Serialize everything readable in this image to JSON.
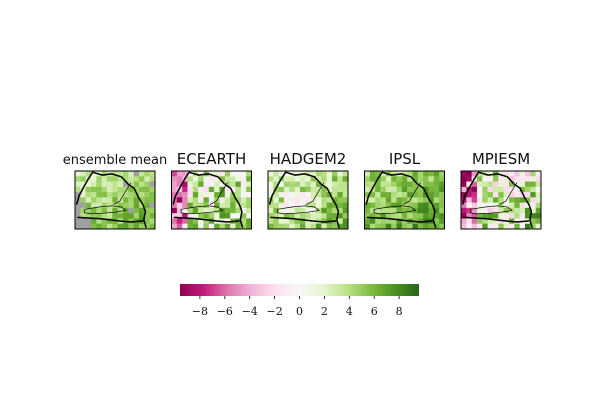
{
  "chart_data": {
    "type": "heatmap",
    "colormap": {
      "name": "PiYG",
      "stops": [
        "#8e0152",
        "#c51b7d",
        "#de77ae",
        "#f1b6da",
        "#fde0ef",
        "#f7f7f7",
        "#e6f5d0",
        "#b8e186",
        "#7fbc41",
        "#4d9221",
        "#276419"
      ]
    },
    "colorbar": {
      "range": [
        -9.6,
        9.6
      ],
      "ticks": [
        -8,
        -6,
        -4,
        -2,
        0,
        2,
        4,
        6,
        8
      ],
      "tick_labels": [
        "−8",
        "−6",
        "−4",
        "−2",
        "0",
        "2",
        "4",
        "6",
        "8"
      ]
    },
    "panels": [
      {
        "title": "ensemble mean",
        "has_missing": true,
        "seed": 11,
        "bias": 4.5,
        "noise": 1.8
      },
      {
        "title": "ECEARTH",
        "seed": 23,
        "bias": 3.0,
        "noise": 4.6,
        "west_dry": true
      },
      {
        "title": "HADGEM2",
        "seed": 37,
        "bias": 4.0,
        "noise": 2.6,
        "center_pale": true
      },
      {
        "title": "IPSL",
        "seed": 41,
        "bias": 5.5,
        "noise": 2.2
      },
      {
        "title": "MPIESM",
        "seed": 59,
        "bias": 2.2,
        "noise": 5.2,
        "west_dry": true
      }
    ]
  }
}
